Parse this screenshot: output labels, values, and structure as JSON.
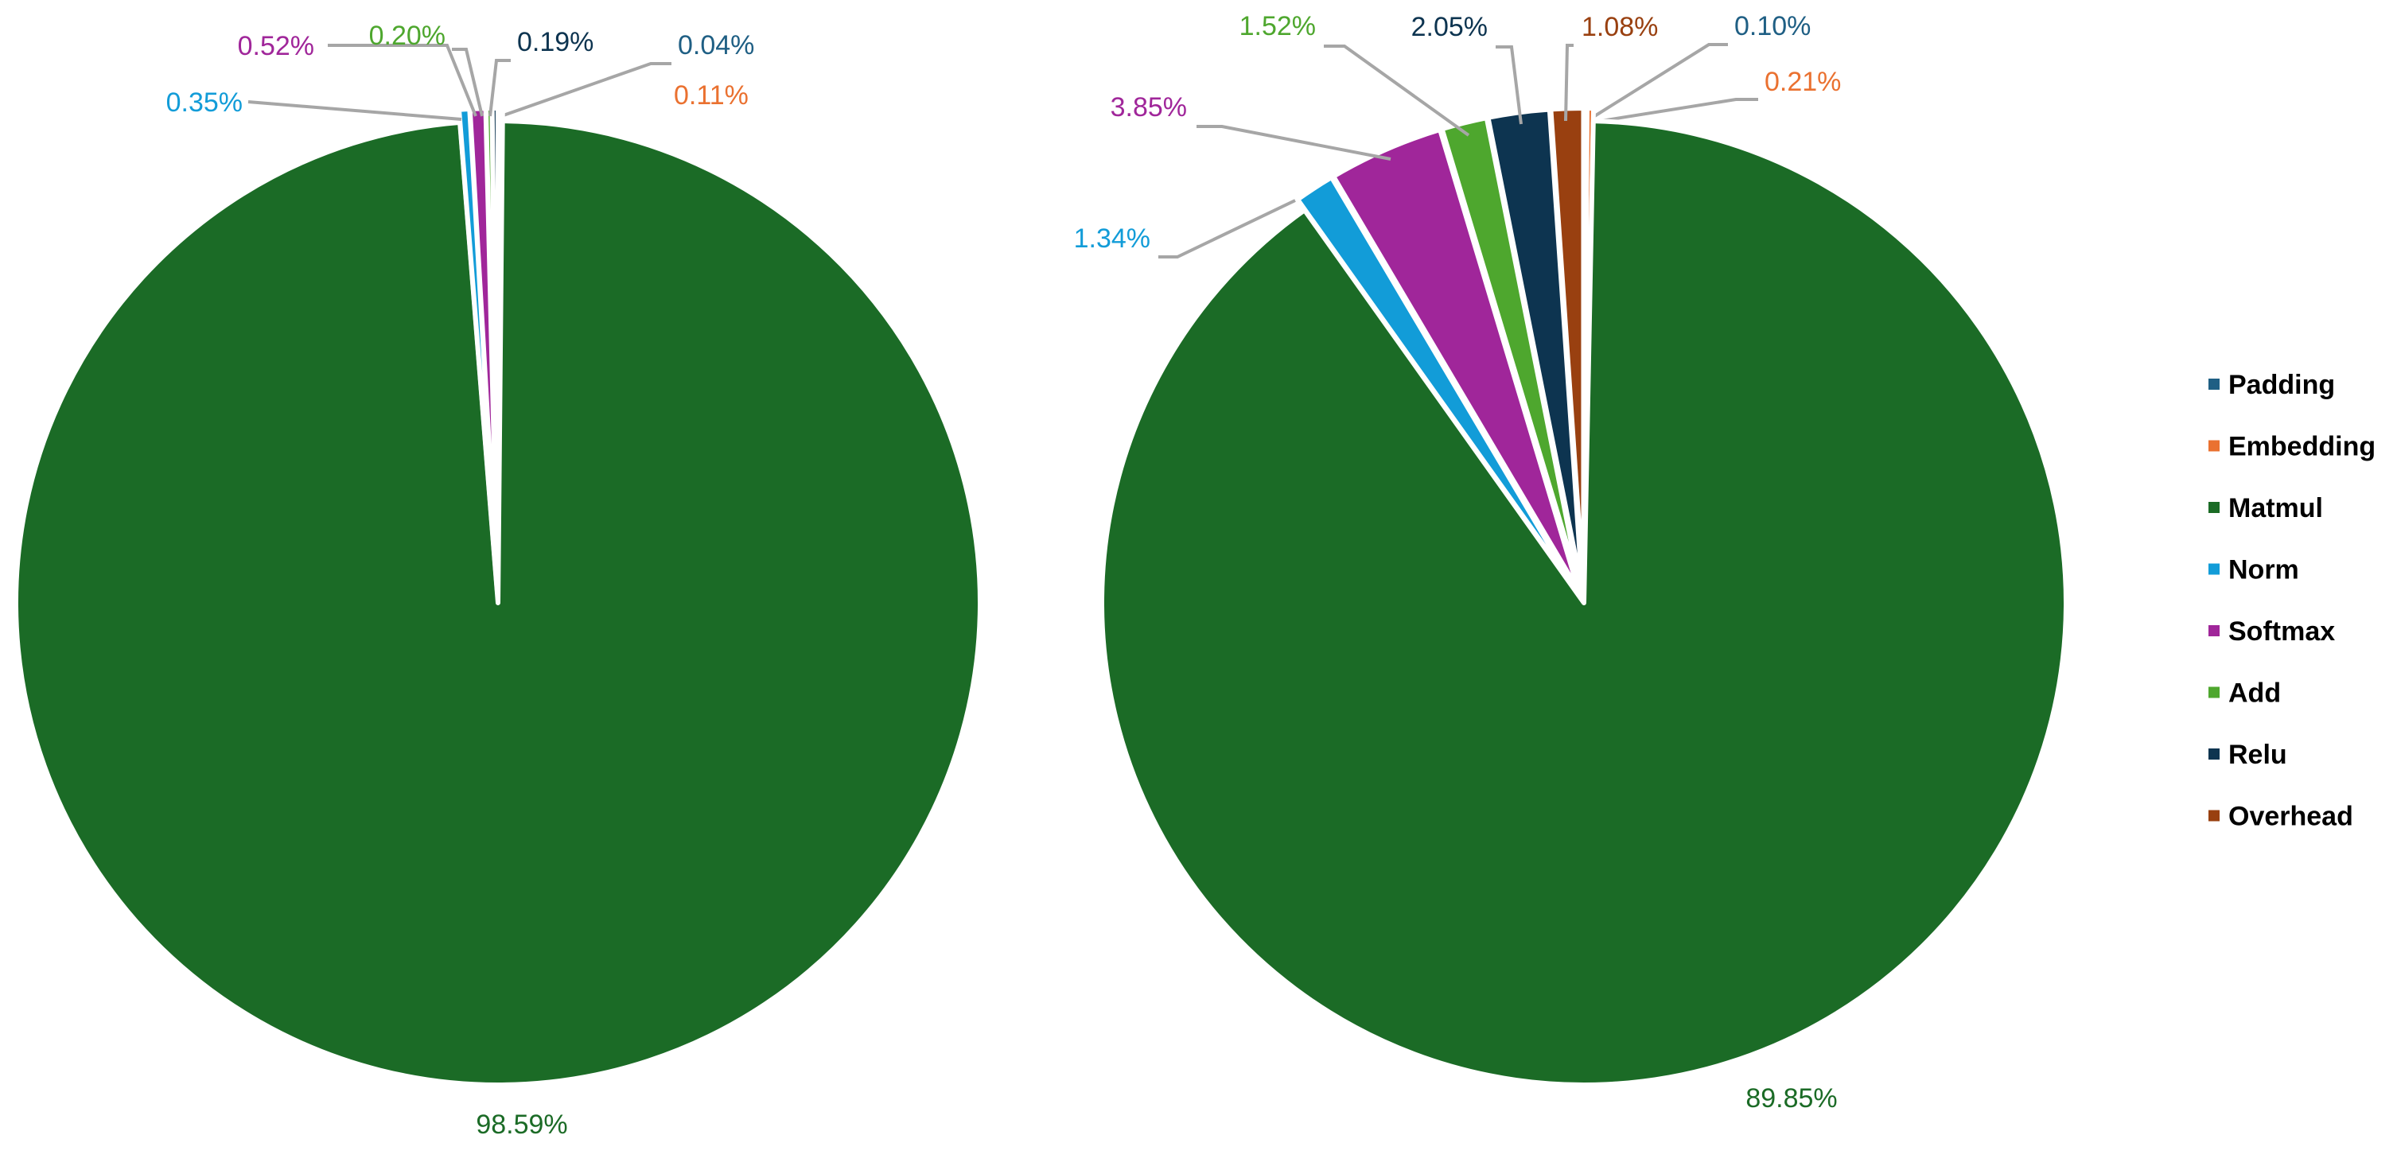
{
  "legend": {
    "position": "right",
    "items": [
      {
        "label": "Padding",
        "color": "#1f5f84"
      },
      {
        "label": "Embedding",
        "color": "#ea7130"
      },
      {
        "label": "Matmul",
        "color": "#1b6b26"
      },
      {
        "label": "Norm",
        "color": "#129cd8"
      },
      {
        "label": "Softmax",
        "color": "#a0269a"
      },
      {
        "label": "Add",
        "color": "#4ea72e"
      },
      {
        "label": "Relu",
        "color": "#0d3450"
      },
      {
        "label": "Overhead",
        "color": "#994010"
      }
    ]
  },
  "chart_data": [
    {
      "type": "pie",
      "title": "",
      "categories": [
        "Padding",
        "Embedding",
        "Matmul",
        "Norm",
        "Softmax",
        "Add",
        "Relu",
        "Overhead"
      ],
      "values": [
        0.04,
        0.11,
        98.59,
        0.35,
        0.52,
        0.2,
        0.19,
        0.0
      ],
      "labels": [
        "0.04%",
        "0.11%",
        "98.59%",
        "0.35%",
        "0.52%",
        "0.20%",
        "0.19%",
        ""
      ],
      "start_angle_deg": 0,
      "direction": "clockwise"
    },
    {
      "type": "pie",
      "title": "",
      "categories": [
        "Padding",
        "Embedding",
        "Matmul",
        "Norm",
        "Softmax",
        "Add",
        "Relu",
        "Overhead"
      ],
      "values": [
        0.1,
        0.21,
        89.85,
        1.34,
        3.85,
        1.52,
        2.05,
        1.08
      ],
      "labels": [
        "0.10%",
        "0.21%",
        "89.85%",
        "1.34%",
        "3.85%",
        "1.52%",
        "2.05%",
        "1.08%"
      ],
      "start_angle_deg": 0,
      "direction": "clockwise"
    }
  ]
}
